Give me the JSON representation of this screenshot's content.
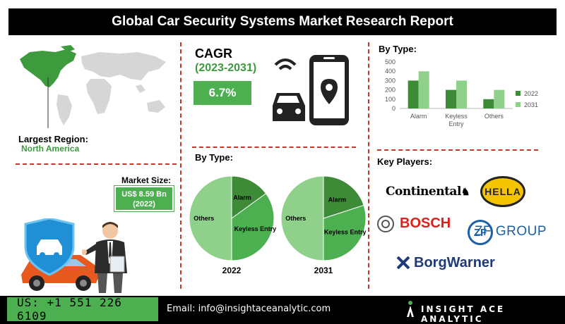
{
  "title": "Global Car Security Systems Market Research Report",
  "region": {
    "label": "Largest Region:",
    "value": "North America"
  },
  "market_size": {
    "label": "Market Size:",
    "value": "US$ 8.59 Bn",
    "year": "(2022)"
  },
  "cagr": {
    "label": "CAGR",
    "period": "(2023-2031)",
    "value": "6.7%"
  },
  "pies_label": "By Type:",
  "bar_label": "By Type:",
  "key_players": {
    "label": "Key Players:",
    "names": [
      "Continental",
      "HELLA",
      "BOSCH",
      "ZF GROUP",
      "BorgWarner"
    ]
  },
  "footer": {
    "phone": "US: +1 551 226 6109",
    "email": "Email: info@insightaceanalytic.com",
    "brand": "INSIGHT ACE ANALYTIC"
  },
  "colors": {
    "dark_green": "#3d8b37",
    "light_green": "#8fd18b",
    "accent": "#4caf50",
    "divider": "#c0392b"
  },
  "chart_data": [
    {
      "type": "bar",
      "title": "By Type:",
      "categories": [
        "Alarm",
        "Keyless Entry",
        "Others"
      ],
      "series": [
        {
          "name": "2022",
          "values": [
            300,
            200,
            100
          ],
          "color": "#3d8b37"
        },
        {
          "name": "2031",
          "values": [
            400,
            300,
            200
          ],
          "color": "#8fd18b"
        }
      ],
      "ylim": [
        0,
        500
      ],
      "yticks": [
        0,
        100,
        200,
        300,
        400,
        500
      ],
      "grid": false,
      "legend": "right"
    },
    {
      "type": "pie",
      "title": "2022",
      "slices": [
        {
          "label": "Alarm",
          "value": 15,
          "color": "#3d8b37"
        },
        {
          "label": "Keyless Entry",
          "value": 35,
          "color": "#4caf50"
        },
        {
          "label": "Others",
          "value": 50,
          "color": "#8fd18b"
        }
      ]
    },
    {
      "type": "pie",
      "title": "2031",
      "slices": [
        {
          "label": "Alarm",
          "value": 20,
          "color": "#3d8b37"
        },
        {
          "label": "Keyless Entry",
          "value": 30,
          "color": "#4caf50"
        },
        {
          "label": "Others",
          "value": 50,
          "color": "#8fd18b"
        }
      ]
    }
  ]
}
